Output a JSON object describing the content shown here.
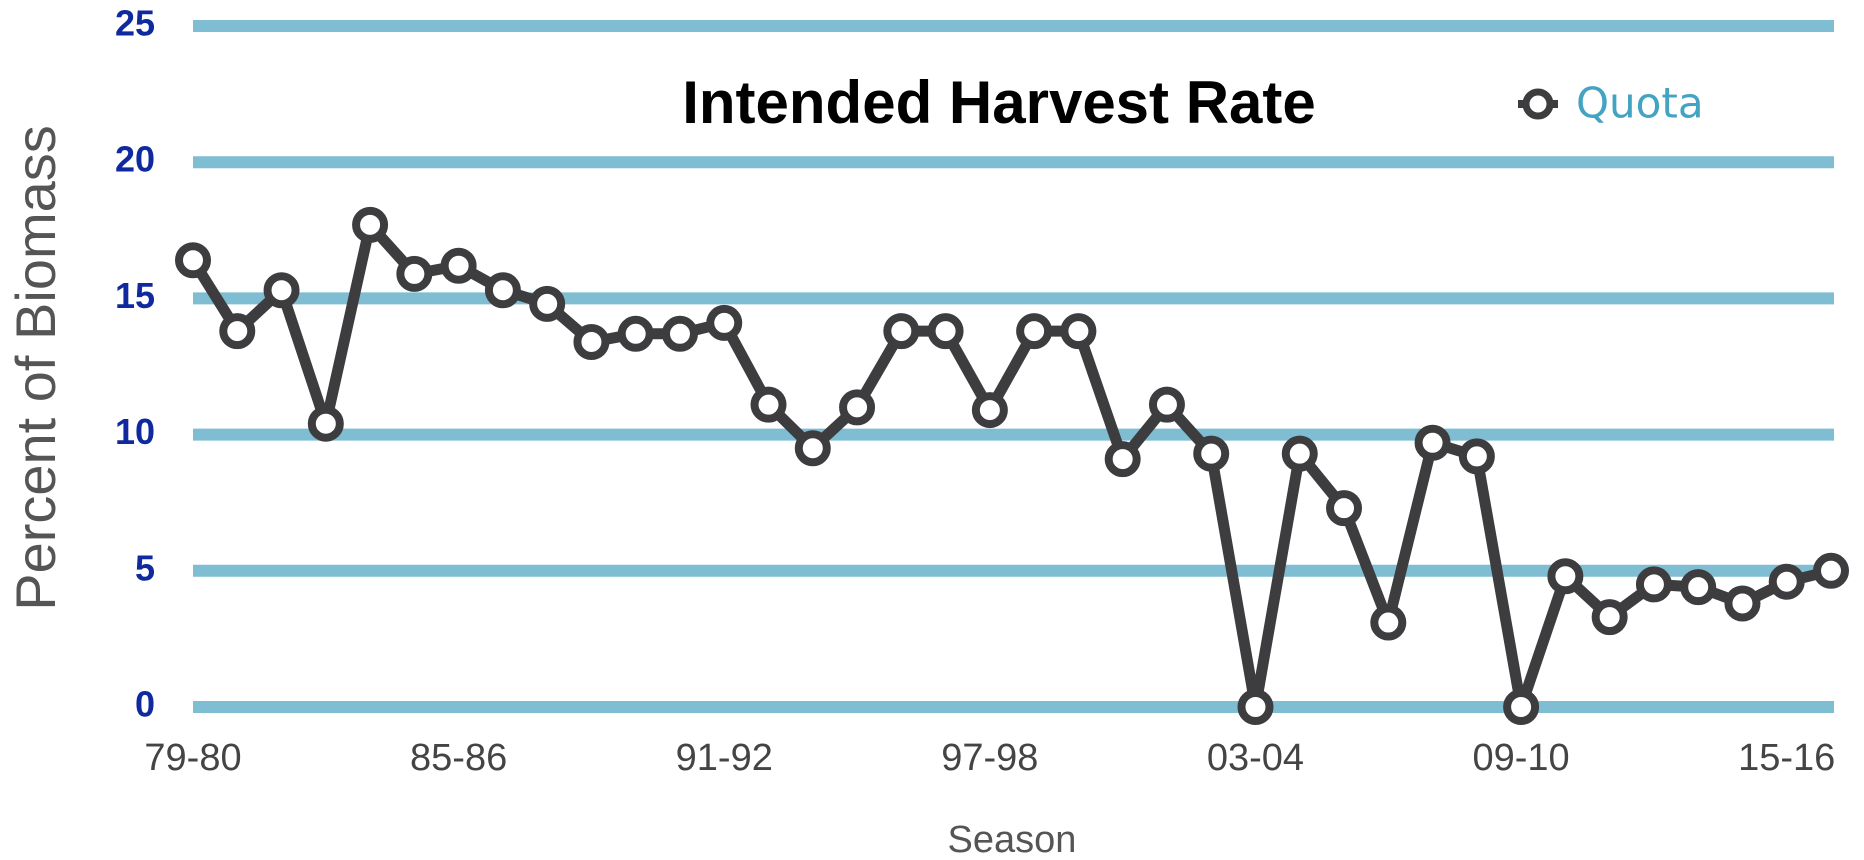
{
  "chart_data": {
    "type": "line",
    "title": "Intended Harvest Rate",
    "x_label": "Season",
    "y_label": "Percent of Biomass",
    "categories": [
      "79-80",
      null,
      null,
      null,
      null,
      null,
      "85-86",
      null,
      null,
      null,
      null,
      null,
      "91-92",
      null,
      null,
      null,
      null,
      null,
      "97-98",
      null,
      null,
      null,
      null,
      null,
      "03-04",
      null,
      null,
      null,
      null,
      null,
      "09-10",
      null,
      null,
      null,
      null,
      null,
      "15-16",
      null
    ],
    "series": [
      {
        "name": "Quota",
        "color": "#3d3d3f",
        "values": [
          16.4,
          13.8,
          15.3,
          10.4,
          17.7,
          15.9,
          16.2,
          15.3,
          14.8,
          13.4,
          13.7,
          13.7,
          14.1,
          11.1,
          9.5,
          11.0,
          13.8,
          13.8,
          10.9,
          13.8,
          13.8,
          9.1,
          11.1,
          9.3,
          0,
          9.3,
          7.3,
          3.1,
          9.7,
          9.2,
          0,
          4.8,
          3.3,
          4.5,
          4.4,
          3.8,
          4.6,
          5.0
        ]
      }
    ],
    "ylim": [
      0,
      25
    ],
    "yticks": [
      0,
      5,
      10,
      15,
      20,
      25
    ],
    "grid": true,
    "grid_color": "#7fbdd2",
    "legend": "upper right"
  }
}
